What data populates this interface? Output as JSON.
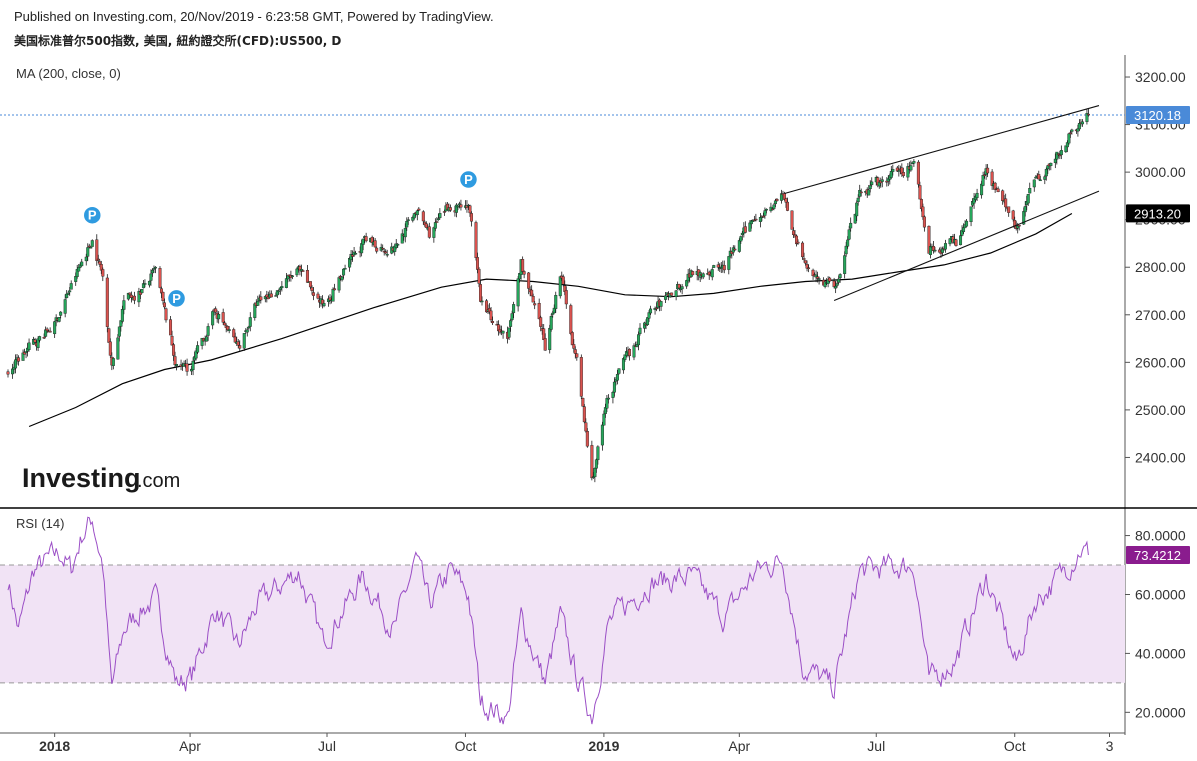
{
  "header": {
    "line1": "Published on Investing.com, 20/Nov/2019 - 6:23:58 GMT, Powered by TradingView.",
    "line2": "美国标准普尔500指数, 美国, 紐約證交所(CFD):US500, D"
  },
  "indicators": {
    "ma_label": "MA (200, close, 0)",
    "rsi_label": "RSI (14)"
  },
  "logo": {
    "main": "Investing",
    "suffix": ".com"
  },
  "markers": {
    "pivot_letter": "P"
  },
  "colors": {
    "up": "#26a65b",
    "down": "#d9534f",
    "ma": "#000000",
    "rsi": "#9b4fc6",
    "rsi_band": "#f1e3f5",
    "price_tag": "#4a8ad8",
    "ma_tag": "#000000",
    "rsi_tag": "#8a1c8e",
    "pivot": "#2f9be0"
  },
  "chart_data": [
    {
      "type": "candlestick",
      "title": "美国标准普尔500指数, 美国, 紐約證交所(CFD):US500, D",
      "ylim": [
        2300,
        3240
      ],
      "y_ticks": [
        "3200.00",
        "3100.00",
        "3000.00",
        "2900.00",
        "2800.00",
        "2700.00",
        "2600.00",
        "2500.00",
        "2400.00"
      ],
      "x_ticks": [
        "2018",
        "Apr",
        "Jul",
        "Oct",
        "2019",
        "Apr",
        "Jul",
        "Oct",
        "3"
      ],
      "last_price_label": "3120.18",
      "last_price": 3120.18,
      "ma_label": "2913.20",
      "ma_value": 2913.2,
      "price_path": [
        {
          "d": "2017-12-01",
          "v": 2580
        },
        {
          "d": "2017-12-15",
          "v": 2630
        },
        {
          "d": "2018-01-01",
          "v": 2680
        },
        {
          "d": "2018-01-12",
          "v": 2760
        },
        {
          "d": "2018-01-26",
          "v": 2860
        },
        {
          "d": "2018-02-02",
          "v": 2780
        },
        {
          "d": "2018-02-08",
          "v": 2590
        },
        {
          "d": "2018-02-16",
          "v": 2730
        },
        {
          "d": "2018-02-27",
          "v": 2750
        },
        {
          "d": "2018-03-09",
          "v": 2790
        },
        {
          "d": "2018-03-23",
          "v": 2590
        },
        {
          "d": "2018-04-02",
          "v": 2590
        },
        {
          "d": "2018-04-18",
          "v": 2710
        },
        {
          "d": "2018-05-03",
          "v": 2630
        },
        {
          "d": "2018-05-15",
          "v": 2720
        },
        {
          "d": "2018-06-12",
          "v": 2790
        },
        {
          "d": "2018-06-28",
          "v": 2720
        },
        {
          "d": "2018-07-25",
          "v": 2850
        },
        {
          "d": "2018-08-15",
          "v": 2840
        },
        {
          "d": "2018-08-29",
          "v": 2920
        },
        {
          "d": "2018-09-07",
          "v": 2870
        },
        {
          "d": "2018-09-21",
          "v": 2930
        },
        {
          "d": "2018-10-03",
          "v": 2935
        },
        {
          "d": "2018-10-11",
          "v": 2730
        },
        {
          "d": "2018-10-29",
          "v": 2640
        },
        {
          "d": "2018-11-07",
          "v": 2810
        },
        {
          "d": "2018-11-23",
          "v": 2630
        },
        {
          "d": "2018-12-03",
          "v": 2790
        },
        {
          "d": "2018-12-14",
          "v": 2600
        },
        {
          "d": "2018-12-24",
          "v": 2350
        },
        {
          "d": "2019-01-04",
          "v": 2530
        },
        {
          "d": "2019-01-31",
          "v": 2700
        },
        {
          "d": "2019-02-28",
          "v": 2790
        },
        {
          "d": "2019-03-22",
          "v": 2800
        },
        {
          "d": "2019-04-12",
          "v": 2910
        },
        {
          "d": "2019-04-30",
          "v": 2950
        },
        {
          "d": "2019-05-13",
          "v": 2810
        },
        {
          "d": "2019-06-03",
          "v": 2750
        },
        {
          "d": "2019-06-20",
          "v": 2950
        },
        {
          "d": "2019-07-26",
          "v": 3020
        },
        {
          "d": "2019-08-05",
          "v": 2840
        },
        {
          "d": "2019-08-23",
          "v": 2850
        },
        {
          "d": "2019-09-12",
          "v": 3010
        },
        {
          "d": "2019-10-02",
          "v": 2880
        },
        {
          "d": "2019-10-15",
          "v": 2990
        },
        {
          "d": "2019-10-31",
          "v": 3040
        },
        {
          "d": "2019-11-08",
          "v": 3090
        },
        {
          "d": "2019-11-19",
          "v": 3120
        }
      ],
      "ma200": [
        {
          "d": "2017-12-15",
          "v": 2465
        },
        {
          "d": "2018-01-15",
          "v": 2505
        },
        {
          "d": "2018-02-15",
          "v": 2555
        },
        {
          "d": "2018-03-15",
          "v": 2585
        },
        {
          "d": "2018-04-15",
          "v": 2605
        },
        {
          "d": "2018-06-01",
          "v": 2650
        },
        {
          "d": "2018-08-01",
          "v": 2715
        },
        {
          "d": "2018-09-15",
          "v": 2758
        },
        {
          "d": "2018-10-15",
          "v": 2775
        },
        {
          "d": "2018-11-15",
          "v": 2770
        },
        {
          "d": "2018-12-15",
          "v": 2760
        },
        {
          "d": "2019-01-15",
          "v": 2742
        },
        {
          "d": "2019-02-15",
          "v": 2738
        },
        {
          "d": "2019-03-15",
          "v": 2745
        },
        {
          "d": "2019-04-15",
          "v": 2760
        },
        {
          "d": "2019-05-15",
          "v": 2770
        },
        {
          "d": "2019-06-15",
          "v": 2775
        },
        {
          "d": "2019-07-15",
          "v": 2790
        },
        {
          "d": "2019-08-15",
          "v": 2805
        },
        {
          "d": "2019-09-15",
          "v": 2830
        },
        {
          "d": "2019-10-15",
          "v": 2870
        },
        {
          "d": "2019-11-08",
          "v": 2913
        }
      ],
      "trendlines": [
        {
          "from": {
            "d": "2019-05-01",
            "v": 2955
          },
          "to": {
            "d": "2019-11-26",
            "v": 3140
          }
        },
        {
          "from": {
            "d": "2019-06-03",
            "v": 2730
          },
          "to": {
            "d": "2019-11-26",
            "v": 2960
          }
        }
      ],
      "pivots": [
        {
          "d": "2018-01-26",
          "v": 2880
        },
        {
          "d": "2018-03-23",
          "v": 2705
        },
        {
          "d": "2018-10-03",
          "v": 2955
        }
      ]
    },
    {
      "type": "line",
      "title": "RSI (14)",
      "ylim": [
        14,
        88
      ],
      "y_ticks": [
        "80.0000",
        "60.0000",
        "40.0000",
        "20.0000"
      ],
      "bands": [
        30,
        70
      ],
      "last_value_label": "73.4212",
      "last_value": 73.4212,
      "points": [
        {
          "d": "2017-12-01",
          "v": 65
        },
        {
          "d": "2017-12-08",
          "v": 48
        },
        {
          "d": "2017-12-18",
          "v": 68
        },
        {
          "d": "2017-12-29",
          "v": 72
        },
        {
          "d": "2018-01-05",
          "v": 74
        },
        {
          "d": "2018-01-12",
          "v": 68
        },
        {
          "d": "2018-01-19",
          "v": 80
        },
        {
          "d": "2018-01-26",
          "v": 86
        },
        {
          "d": "2018-02-02",
          "v": 70
        },
        {
          "d": "2018-02-06",
          "v": 40
        },
        {
          "d": "2018-02-08",
          "v": 28
        },
        {
          "d": "2018-02-16",
          "v": 48
        },
        {
          "d": "2018-02-27",
          "v": 55
        },
        {
          "d": "2018-03-09",
          "v": 58
        },
        {
          "d": "2018-03-23",
          "v": 30
        },
        {
          "d": "2018-04-02",
          "v": 32
        },
        {
          "d": "2018-04-18",
          "v": 55
        },
        {
          "d": "2018-05-03",
          "v": 42
        },
        {
          "d": "2018-05-15",
          "v": 56
        },
        {
          "d": "2018-06-12",
          "v": 68
        },
        {
          "d": "2018-06-28",
          "v": 44
        },
        {
          "d": "2018-07-25",
          "v": 66
        },
        {
          "d": "2018-08-15",
          "v": 48
        },
        {
          "d": "2018-08-29",
          "v": 72
        },
        {
          "d": "2018-09-07",
          "v": 56
        },
        {
          "d": "2018-09-21",
          "v": 68
        },
        {
          "d": "2018-10-03",
          "v": 60
        },
        {
          "d": "2018-10-11",
          "v": 24
        },
        {
          "d": "2018-10-29",
          "v": 18
        },
        {
          "d": "2018-11-07",
          "v": 52
        },
        {
          "d": "2018-11-23",
          "v": 30
        },
        {
          "d": "2018-12-03",
          "v": 52
        },
        {
          "d": "2018-12-14",
          "v": 32
        },
        {
          "d": "2018-12-24",
          "v": 19
        },
        {
          "d": "2019-01-04",
          "v": 50
        },
        {
          "d": "2019-01-31",
          "v": 64
        },
        {
          "d": "2019-02-28",
          "v": 66
        },
        {
          "d": "2019-03-22",
          "v": 52
        },
        {
          "d": "2019-04-12",
          "v": 68
        },
        {
          "d": "2019-04-30",
          "v": 72
        },
        {
          "d": "2019-05-13",
          "v": 36
        },
        {
          "d": "2019-06-03",
          "v": 28
        },
        {
          "d": "2019-06-20",
          "v": 68
        },
        {
          "d": "2019-07-26",
          "v": 70
        },
        {
          "d": "2019-08-05",
          "v": 30
        },
        {
          "d": "2019-08-23",
          "v": 38
        },
        {
          "d": "2019-09-12",
          "v": 66
        },
        {
          "d": "2019-10-02",
          "v": 36
        },
        {
          "d": "2019-10-15",
          "v": 58
        },
        {
          "d": "2019-10-31",
          "v": 66
        },
        {
          "d": "2019-11-08",
          "v": 72
        },
        {
          "d": "2019-11-14",
          "v": 76
        },
        {
          "d": "2019-11-19",
          "v": 73.4
        }
      ]
    }
  ]
}
